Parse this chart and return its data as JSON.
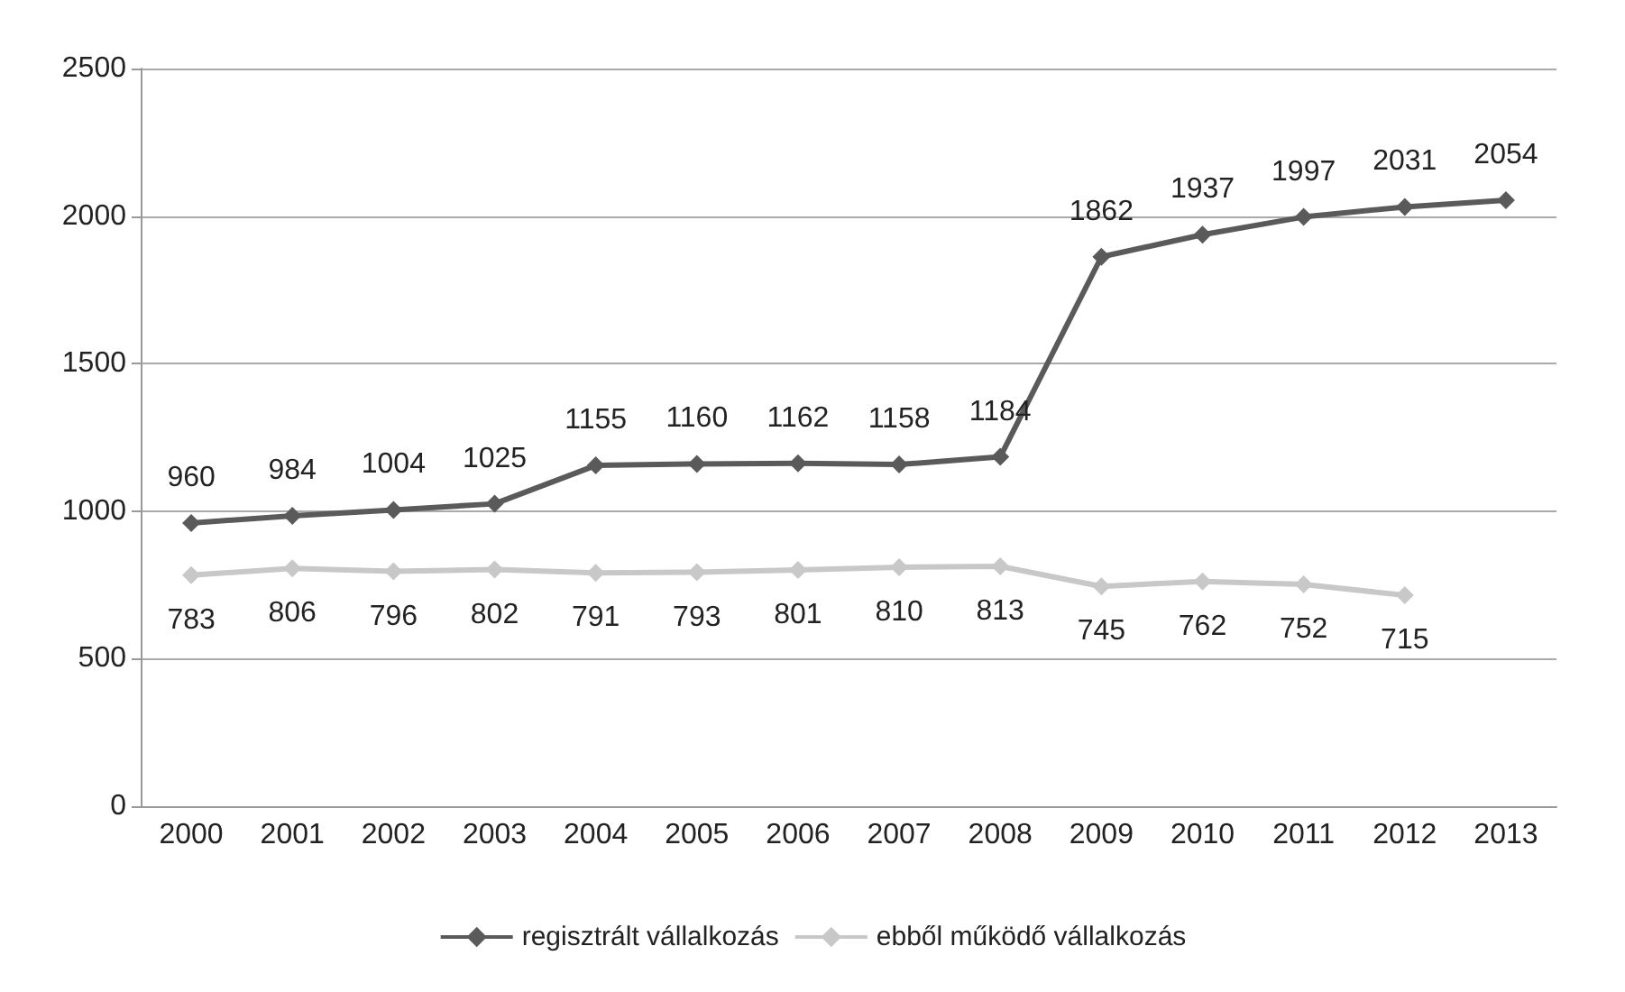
{
  "chart_data": {
    "type": "line",
    "categories": [
      "2000",
      "2001",
      "2002",
      "2003",
      "2004",
      "2005",
      "2006",
      "2007",
      "2008",
      "2009",
      "2010",
      "2011",
      "2012",
      "2013"
    ],
    "series": [
      {
        "name": "regisztrált vállalkozás",
        "color": "#5a5a5a",
        "values": [
          960,
          984,
          1004,
          1025,
          1155,
          1160,
          1162,
          1158,
          1184,
          1862,
          1937,
          1997,
          2031,
          2054
        ]
      },
      {
        "name": "ebből működő vállalkozás",
        "color": "#c8c8c8",
        "values": [
          783,
          806,
          796,
          802,
          791,
          793,
          801,
          810,
          813,
          745,
          762,
          752,
          715,
          null
        ]
      }
    ],
    "ylim": [
      0,
      2500
    ],
    "yticks": [
      0,
      500,
      1000,
      1500,
      2000,
      2500
    ],
    "grid": "y",
    "legend": "bottom",
    "marker": "diamond",
    "line_style": "solid",
    "data_labels": true
  }
}
